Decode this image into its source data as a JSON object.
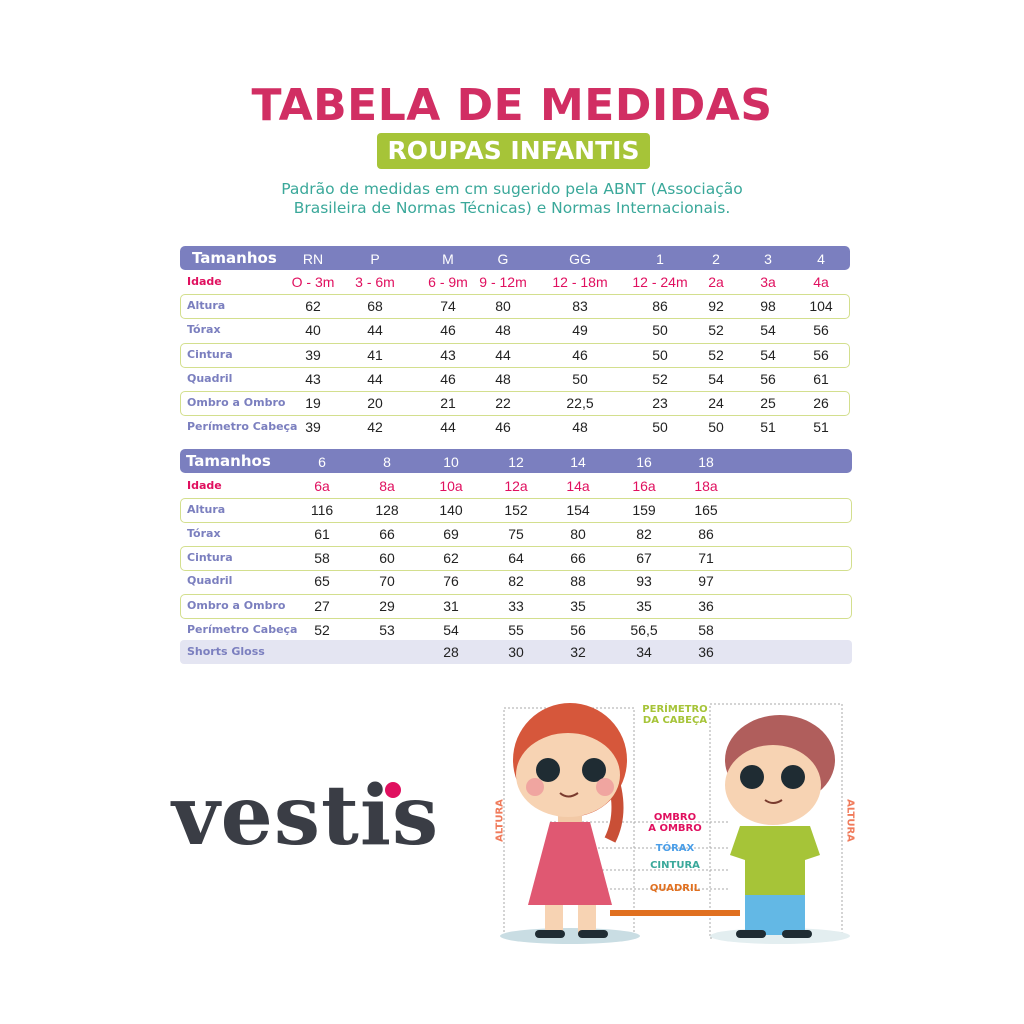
{
  "header": {
    "title": "TABELA DE MEDIDAS",
    "badge": "ROUPAS INFANTIS",
    "subtitle_line1": "Padrão de medidas em cm sugerido pela ABNT (Associação",
    "subtitle_line2": "Brasileira de Normas Técnicas) e Normas Internacionais."
  },
  "colors": {
    "title": "#d12e63",
    "badge": "#a6c438",
    "subtitle": "#3aa89a",
    "table_header": "#7b7fbf",
    "age": "#e0105f"
  },
  "tables": [
    {
      "header_label": "Tamanhos",
      "sizes": [
        "RN",
        "P",
        "M",
        "G",
        "GG",
        "1",
        "2",
        "3",
        "4"
      ],
      "rows": [
        {
          "label": "Idade",
          "values": [
            "O - 3m",
            "3 - 6m",
            "6 - 9m",
            "9 - 12m",
            "12 - 18m",
            "12 - 24m",
            "2a",
            "3a",
            "4a"
          ]
        },
        {
          "label": "Altura",
          "values": [
            "62",
            "68",
            "74",
            "80",
            "83",
            "86",
            "92",
            "98",
            "104"
          ]
        },
        {
          "label": "Tórax",
          "values": [
            "40",
            "44",
            "46",
            "48",
            "49",
            "50",
            "52",
            "54",
            "56"
          ]
        },
        {
          "label": "Cintura",
          "values": [
            "39",
            "41",
            "43",
            "44",
            "46",
            "50",
            "52",
            "54",
            "56"
          ]
        },
        {
          "label": "Quadril",
          "values": [
            "43",
            "44",
            "46",
            "48",
            "50",
            "52",
            "54",
            "56",
            "61"
          ]
        },
        {
          "label": "Ombro a Ombro",
          "values": [
            "19",
            "20",
            "21",
            "22",
            "22,5",
            "23",
            "24",
            "25",
            "26"
          ]
        },
        {
          "label": "Perímetro Cabeça",
          "values": [
            "39",
            "42",
            "44",
            "46",
            "48",
            "50",
            "50",
            "51",
            "51"
          ]
        }
      ]
    },
    {
      "header_label": "Tamanhos",
      "sizes": [
        "6",
        "8",
        "10",
        "12",
        "14",
        "16",
        "18"
      ],
      "rows": [
        {
          "label": "Idade",
          "values": [
            "6a",
            "8a",
            "10a",
            "12a",
            "14a",
            "16a",
            "18a"
          ]
        },
        {
          "label": "Altura",
          "values": [
            "116",
            "128",
            "140",
            "152",
            "154",
            "159",
            "165"
          ]
        },
        {
          "label": "Tórax",
          "values": [
            "61",
            "66",
            "69",
            "75",
            "80",
            "82",
            "86"
          ]
        },
        {
          "label": "Cintura",
          "values": [
            "58",
            "60",
            "62",
            "64",
            "66",
            "67",
            "71"
          ]
        },
        {
          "label": "Quadril",
          "values": [
            "65",
            "70",
            "76",
            "82",
            "88",
            "93",
            "97"
          ]
        },
        {
          "label": "Ombro a Ombro",
          "values": [
            "27",
            "29",
            "31",
            "33",
            "35",
            "35",
            "36"
          ]
        },
        {
          "label": "Perímetro Cabeça",
          "values": [
            "52",
            "53",
            "54",
            "55",
            "56",
            "56,5",
            "58"
          ]
        },
        {
          "label": "Shorts Gloss",
          "values": [
            "",
            "",
            "28",
            "30",
            "32",
            "34",
            "36"
          ]
        }
      ]
    }
  ],
  "brand": {
    "logo": "vestis"
  },
  "illustration": {
    "head": "PERÍMETRO\nDA CABEÇA",
    "height_left": "ALTURA",
    "height_right": "ALTURA",
    "shoulder": "OMBRO\nA OMBRO",
    "chest": "TÓRAX",
    "waist": "CINTURA",
    "hip": "QUADRIL"
  }
}
